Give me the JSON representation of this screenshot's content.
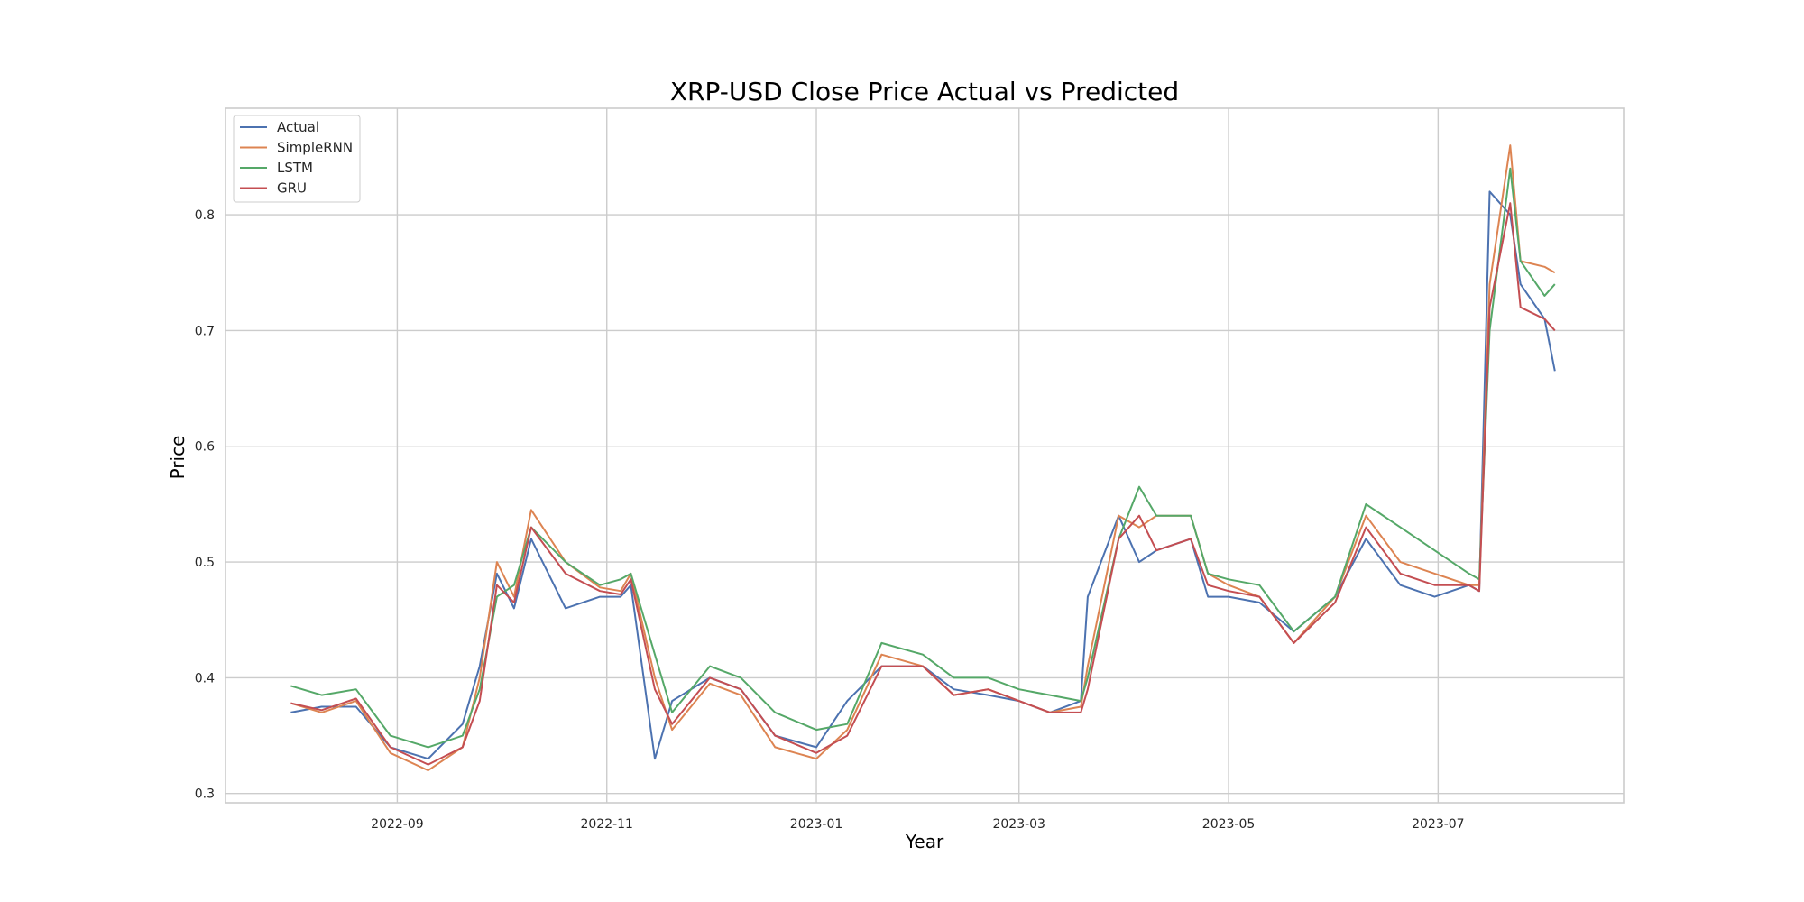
{
  "chart_data": {
    "type": "line",
    "title": "XRP-USD Close Price Actual vs Predicted",
    "xlabel": "Year",
    "ylabel": "Price",
    "x_tick_labels": [
      "2022-09",
      "2022-11",
      "2023-01",
      "2023-03",
      "2023-05",
      "2023-07"
    ],
    "y_tick_labels": [
      "0.3",
      "0.4",
      "0.5",
      "0.6",
      "0.7",
      "0.8"
    ],
    "xlim": [
      "2022-07-13",
      "2023-08-24"
    ],
    "ylim": [
      0.292,
      0.892
    ],
    "grid": true,
    "legend_position": "top-left",
    "x": [
      "2022-08-01",
      "2022-08-10",
      "2022-08-20",
      "2022-08-30",
      "2022-09-10",
      "2022-09-20",
      "2022-09-25",
      "2022-09-30",
      "2022-10-05",
      "2022-10-10",
      "2022-10-20",
      "2022-10-30",
      "2022-11-05",
      "2022-11-08",
      "2022-11-15",
      "2022-11-20",
      "2022-12-01",
      "2022-12-10",
      "2022-12-20",
      "2023-01-01",
      "2023-01-10",
      "2023-01-20",
      "2023-02-01",
      "2023-02-10",
      "2023-02-20",
      "2023-03-01",
      "2023-03-10",
      "2023-03-19",
      "2023-03-21",
      "2023-03-30",
      "2023-04-05",
      "2023-04-10",
      "2023-04-20",
      "2023-04-25",
      "2023-05-01",
      "2023-05-10",
      "2023-05-20",
      "2023-06-01",
      "2023-06-10",
      "2023-06-20",
      "2023-06-30",
      "2023-07-10",
      "2023-07-13",
      "2023-07-16",
      "2023-07-22",
      "2023-07-25",
      "2023-08-01",
      "2023-08-04"
    ],
    "series": [
      {
        "name": "Actual",
        "color": "#4c72b0",
        "values": [
          0.37,
          0.375,
          0.375,
          0.34,
          0.33,
          0.36,
          0.41,
          0.49,
          0.46,
          0.52,
          0.46,
          0.47,
          0.47,
          0.48,
          0.33,
          0.38,
          0.4,
          0.39,
          0.35,
          0.34,
          0.38,
          0.41,
          0.41,
          0.39,
          0.385,
          0.38,
          0.37,
          0.38,
          0.47,
          0.54,
          0.5,
          0.51,
          0.52,
          0.47,
          0.47,
          0.465,
          0.44,
          0.47,
          0.52,
          0.48,
          0.47,
          0.48,
          0.475,
          0.82,
          0.8,
          0.74,
          0.71,
          0.665
        ]
      },
      {
        "name": "SimpleRNN",
        "color": "#dd8452",
        "values": [
          0.378,
          0.37,
          0.38,
          0.335,
          0.32,
          0.34,
          0.4,
          0.5,
          0.47,
          0.545,
          0.5,
          0.478,
          0.475,
          0.49,
          0.4,
          0.355,
          0.395,
          0.385,
          0.34,
          0.33,
          0.355,
          0.42,
          0.41,
          0.385,
          0.39,
          0.38,
          0.37,
          0.375,
          0.41,
          0.54,
          0.53,
          0.54,
          0.54,
          0.49,
          0.48,
          0.47,
          0.43,
          0.47,
          0.54,
          0.5,
          0.49,
          0.48,
          0.48,
          0.74,
          0.86,
          0.76,
          0.755,
          0.75
        ]
      },
      {
        "name": "LSTM",
        "color": "#55a868",
        "values": [
          0.393,
          0.385,
          0.39,
          0.35,
          0.34,
          0.35,
          0.39,
          0.47,
          0.48,
          0.53,
          0.5,
          0.48,
          0.485,
          0.49,
          0.42,
          0.37,
          0.41,
          0.4,
          0.37,
          0.355,
          0.36,
          0.43,
          0.42,
          0.4,
          0.4,
          0.39,
          0.385,
          0.38,
          0.4,
          0.52,
          0.565,
          0.54,
          0.54,
          0.49,
          0.485,
          0.48,
          0.44,
          0.47,
          0.55,
          0.53,
          0.51,
          0.49,
          0.485,
          0.7,
          0.84,
          0.76,
          0.73,
          0.74
        ]
      },
      {
        "name": "GRU",
        "color": "#c44e52",
        "values": [
          0.378,
          0.372,
          0.382,
          0.34,
          0.325,
          0.34,
          0.38,
          0.48,
          0.465,
          0.53,
          0.49,
          0.475,
          0.472,
          0.485,
          0.39,
          0.36,
          0.4,
          0.39,
          0.35,
          0.335,
          0.35,
          0.41,
          0.41,
          0.385,
          0.39,
          0.38,
          0.37,
          0.37,
          0.39,
          0.52,
          0.54,
          0.51,
          0.52,
          0.48,
          0.475,
          0.47,
          0.43,
          0.465,
          0.53,
          0.49,
          0.48,
          0.48,
          0.475,
          0.72,
          0.81,
          0.72,
          0.71,
          0.7
        ]
      }
    ]
  }
}
